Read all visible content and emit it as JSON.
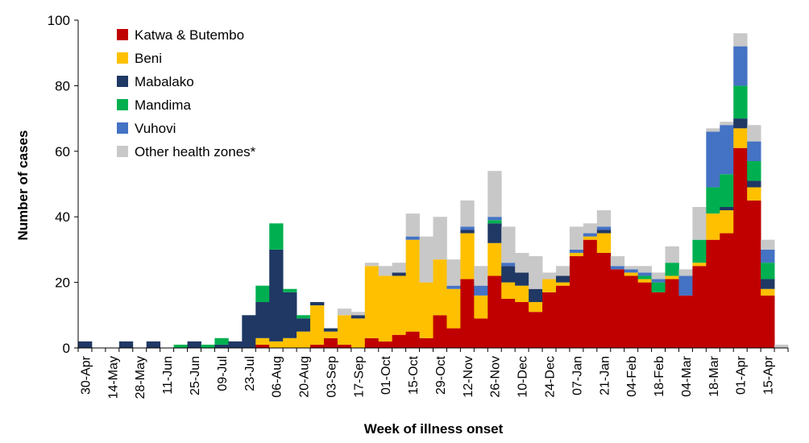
{
  "chart_data": {
    "type": "bar",
    "stacked": true,
    "ylabel": "Number of cases",
    "xlabel": "Week of illness onset",
    "ylim": [
      0,
      100
    ],
    "yticks": [
      0,
      20,
      40,
      60,
      80,
      100
    ],
    "grid": false,
    "legend": "top-left",
    "x_tick_labels": [
      "30-Apr",
      "14-May",
      "28-May",
      "11-Jun",
      "25-Jun",
      "09-Jul",
      "23-Jul",
      "06-Aug",
      "20-Aug",
      "03-Sep",
      "17-Sep",
      "01-Oct",
      "15-Oct",
      "29-Oct",
      "12-Nov",
      "26-Nov",
      "10-Dec",
      "24-Dec",
      "07-Jan",
      "21-Jan",
      "04-Feb",
      "18-Feb",
      "04-Mar",
      "18-Mar",
      "01-Apr",
      "15-Apr"
    ],
    "categories": [
      "30-Apr",
      "07-May",
      "14-May",
      "21-May",
      "28-May",
      "04-Jun",
      "11-Jun",
      "18-Jun",
      "25-Jun",
      "02-Jul",
      "09-Jul",
      "16-Jul",
      "23-Jul",
      "30-Jul",
      "06-Aug",
      "13-Aug",
      "20-Aug",
      "27-Aug",
      "03-Sep",
      "10-Sep",
      "17-Sep",
      "24-Sep",
      "01-Oct",
      "08-Oct",
      "15-Oct",
      "22-Oct",
      "29-Oct",
      "05-Nov",
      "12-Nov",
      "19-Nov",
      "26-Nov",
      "03-Dec",
      "10-Dec",
      "17-Dec",
      "24-Dec",
      "31-Dec",
      "07-Jan",
      "14-Jan",
      "21-Jan",
      "28-Jan",
      "04-Feb",
      "11-Feb",
      "18-Feb",
      "25-Feb",
      "04-Mar",
      "11-Mar",
      "18-Mar",
      "25-Mar",
      "01-Apr",
      "08-Apr",
      "15-Apr",
      "22-Apr"
    ],
    "series": [
      {
        "name": "Katwa & Butembo",
        "color": "#c00000",
        "values": [
          0,
          0,
          0,
          0,
          0,
          0,
          0,
          0,
          0,
          0,
          0,
          0,
          0,
          1,
          0,
          0,
          0,
          1,
          3,
          1,
          0,
          3,
          2,
          4,
          5,
          3,
          10,
          6,
          21,
          9,
          22,
          15,
          14,
          11,
          17,
          19,
          28,
          33,
          29,
          24,
          22,
          20,
          17,
          21,
          16,
          25,
          33,
          35,
          61,
          45,
          16,
          0
        ]
      },
      {
        "name": "Beni",
        "color": "#ffc000",
        "values": [
          0,
          0,
          0,
          0,
          0,
          0,
          0,
          0,
          0,
          0,
          0,
          0,
          0,
          2,
          2,
          3,
          5,
          12,
          2,
          9,
          9,
          22,
          20,
          18,
          28,
          17,
          17,
          12,
          14,
          7,
          10,
          5,
          5,
          3,
          4,
          1,
          1,
          1,
          6,
          0,
          1,
          1,
          0,
          1,
          0,
          1,
          8,
          7,
          6,
          4,
          2,
          0
        ]
      },
      {
        "name": "Mabalako",
        "color": "#1f3864",
        "values": [
          2,
          0,
          0,
          2,
          0,
          2,
          0,
          0,
          2,
          0,
          1,
          2,
          10,
          11,
          28,
          14,
          4,
          1,
          1,
          0,
          1,
          0,
          0,
          1,
          0,
          0,
          0,
          0,
          1,
          0,
          6,
          5,
          4,
          4,
          0,
          2,
          0,
          0,
          1,
          0,
          0,
          0,
          0,
          0,
          0,
          0,
          0,
          1,
          3,
          2,
          3,
          0
        ]
      },
      {
        "name": "Mandima",
        "color": "#00b050",
        "values": [
          0,
          0,
          0,
          0,
          0,
          0,
          0,
          1,
          0,
          1,
          2,
          0,
          0,
          5,
          8,
          1,
          1,
          0,
          0,
          0,
          0,
          0,
          0,
          0,
          0,
          0,
          0,
          0,
          0,
          0,
          1,
          0,
          0,
          0,
          0,
          0,
          0,
          0,
          0,
          0,
          0,
          1,
          3,
          4,
          0,
          7,
          8,
          10,
          10,
          6,
          5,
          0
        ]
      },
      {
        "name": "Vuhovi",
        "color": "#4472c4",
        "values": [
          0,
          0,
          0,
          0,
          0,
          0,
          0,
          0,
          0,
          0,
          0,
          0,
          0,
          0,
          0,
          0,
          0,
          0,
          0,
          0,
          0,
          0,
          0,
          0,
          1,
          0,
          0,
          1,
          1,
          3,
          1,
          1,
          0,
          0,
          0,
          0,
          1,
          1,
          1,
          1,
          1,
          1,
          1,
          0,
          6,
          0,
          17,
          15,
          12,
          6,
          4,
          0
        ]
      },
      {
        "name": "Other health zones*",
        "color": "#c8c8c8",
        "values": [
          0,
          0,
          0,
          0,
          0,
          0,
          0,
          0,
          0,
          0,
          0,
          0,
          0,
          0,
          0,
          0,
          0,
          0,
          0,
          2,
          1,
          1,
          3,
          3,
          7,
          14,
          13,
          8,
          8,
          6,
          14,
          11,
          6,
          10,
          2,
          3,
          7,
          3,
          5,
          3,
          1,
          2,
          2,
          5,
          2,
          10,
          1,
          1,
          4,
          5,
          3,
          1
        ]
      }
    ]
  }
}
